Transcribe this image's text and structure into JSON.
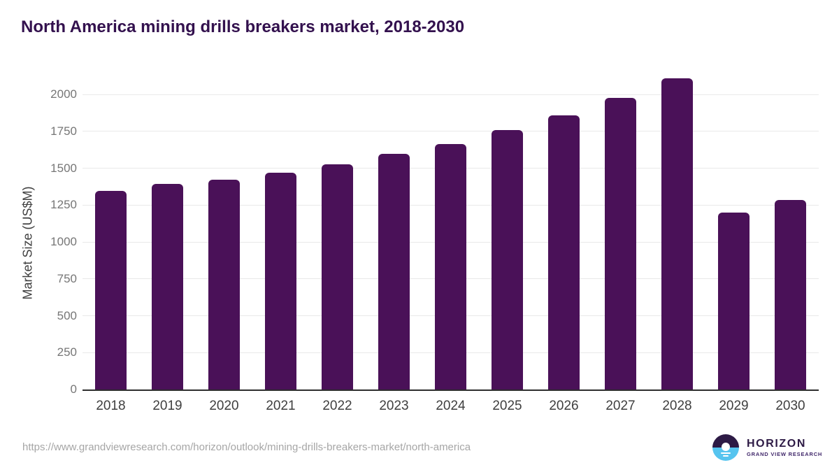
{
  "title": "North America mining drills breakers market, 2018-2030",
  "source_url": "https://www.grandviewresearch.com/horizon/outlook/mining-drills-breakers-market/north-america",
  "logo": {
    "name": "HORIZON",
    "subtitle": "GRAND VIEW RESEARCH"
  },
  "colors": {
    "bar": "#4a1158",
    "title": "#33114e",
    "gridline": "#e9e9e9",
    "axis_line": "#2e2e2e",
    "y_tick_label": "#767676",
    "x_tick_label": "#3f3f3f",
    "url_text": "#a6a6a6",
    "logo_dark_purple": "#2d1a45",
    "logo_light_blue": "#56c4ef"
  },
  "chart_data": {
    "type": "bar",
    "title": "North America mining drills breakers market, 2018-2030",
    "categories": [
      "2018",
      "2019",
      "2020",
      "2021",
      "2022",
      "2023",
      "2024",
      "2025",
      "2026",
      "2027",
      "2028",
      "2029",
      "2030"
    ],
    "values": [
      1345,
      1395,
      1420,
      1470,
      1525,
      1595,
      1665,
      1760,
      1860,
      1975,
      2110,
      1200,
      1285
    ],
    "xlabel": "",
    "ylabel": "Market Size (US$M)",
    "ylim": [
      0,
      2000
    ],
    "yticks": [
      0,
      250,
      500,
      750,
      1000,
      1250,
      1500,
      1750,
      2000
    ],
    "grid": "horizontal",
    "legend": "none",
    "bar_color": "#4a1158"
  }
}
